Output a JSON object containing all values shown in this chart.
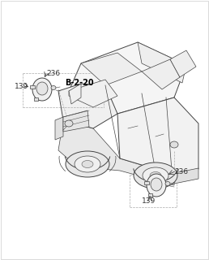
{
  "bg_color": "#ffffff",
  "line_color": "#888888",
  "dark_color": "#444444",
  "label_color": "#333333",
  "bold_label_color": "#000000",
  "fig_width": 2.58,
  "fig_height": 3.2,
  "dpi": 100,
  "label_b220": "B-2-20",
  "part_236_left": "236",
  "part_139_left": "139",
  "part_236_right": "236",
  "part_139_right": "139",
  "lw_body": 0.7,
  "lw_detail": 0.5,
  "lw_dashed": 0.5
}
